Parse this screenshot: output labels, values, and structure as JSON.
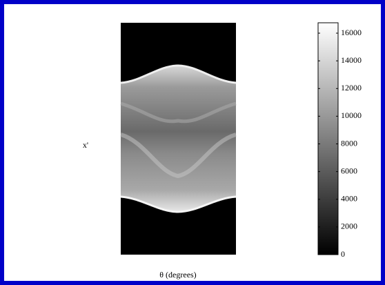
{
  "chart_data": {
    "type": "image",
    "xlabel": "θ (degrees)",
    "ylabel": "x'",
    "colorbar": {
      "clim": [
        0,
        16750
      ],
      "ticks": [
        0,
        2000,
        4000,
        6000,
        8000,
        10000,
        12000,
        14000,
        16000
      ]
    }
  }
}
